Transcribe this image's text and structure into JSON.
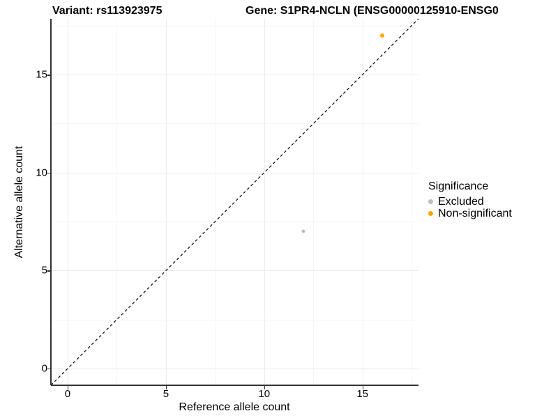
{
  "header": {
    "variant_title": "Variant: rs113923975",
    "gene_title": "Gene: S1PR4-NCLN (ENSG00000125910-ENSG0"
  },
  "chart_data": {
    "type": "scatter",
    "title": "Variant: rs113923975 / Gene: S1PR4-NCLN (ENSG00000125910-ENSG0…)",
    "xlabel": "Reference allele count",
    "ylabel": "Alternative allele count",
    "xlim": [
      -0.85,
      17.85
    ],
    "ylim": [
      -0.85,
      17.85
    ],
    "x_ticks": [
      0,
      5,
      10,
      15
    ],
    "y_ticks": [
      0,
      5,
      10,
      15
    ],
    "minor_gridlines": [
      2.5,
      7.5,
      12.5,
      17.5
    ],
    "grid": "major and minor, light gray on white",
    "identity_line": {
      "slope": 1,
      "intercept": 0,
      "style": "dashed",
      "color": "#000000"
    },
    "series": [
      {
        "name": "Excluded",
        "color": "#BEBEBE",
        "size": 5,
        "points": [
          {
            "x": 12,
            "y": 7
          }
        ]
      },
      {
        "name": "Non-significant",
        "color": "#FFA500",
        "size": 6,
        "points": [
          {
            "x": 16,
            "y": 17
          }
        ]
      }
    ],
    "legend": {
      "title": "Significance",
      "position": "right"
    }
  },
  "colors": {
    "excluded": "#BEBEBE",
    "non_significant": "#FFA500",
    "axis_line": "#333333",
    "major_grid": "#ebebeb",
    "minor_grid": "#f5f5f5"
  }
}
